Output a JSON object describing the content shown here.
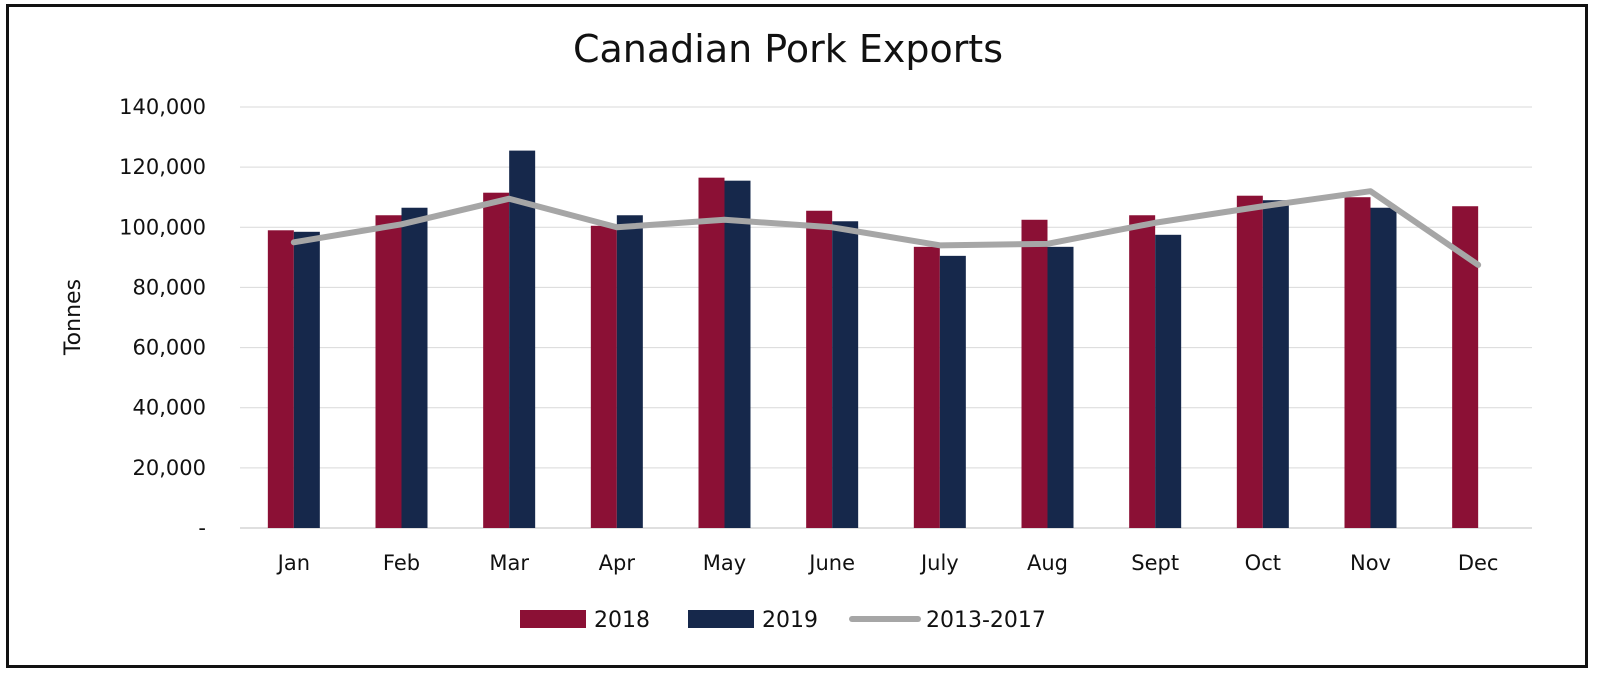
{
  "chart_data": {
    "type": "bar",
    "title": "Canadian Pork Exports",
    "ylabel": "Tonnes",
    "xlabel": "",
    "categories": [
      "Jan",
      "Feb",
      "Mar",
      "Apr",
      "May",
      "June",
      "July",
      "Aug",
      "Sept",
      "Oct",
      "Nov",
      "Dec"
    ],
    "ylim": [
      0,
      140000
    ],
    "yticks": [
      0,
      20000,
      40000,
      60000,
      80000,
      100000,
      120000,
      140000
    ],
    "ytick_labels": [
      "-",
      "20,000",
      "40,000",
      "60,000",
      "80,000",
      "100,000",
      "120,000",
      "140,000"
    ],
    "grid": true,
    "legend_position": "bottom",
    "series": [
      {
        "name": "2018",
        "kind": "bar",
        "color": "#8B1035",
        "values": [
          99000,
          104000,
          111500,
          100500,
          116500,
          105500,
          93500,
          102500,
          104000,
          110500,
          110000,
          107000
        ]
      },
      {
        "name": "2019",
        "kind": "bar",
        "color": "#16284B",
        "values": [
          98500,
          106500,
          125500,
          104000,
          115500,
          102000,
          90500,
          93500,
          97500,
          109000,
          106500,
          null
        ]
      },
      {
        "name": "2013-2017",
        "kind": "line",
        "color": "#A6A6A6",
        "values": [
          95000,
          101000,
          109500,
          100000,
          102500,
          100000,
          94000,
          94500,
          101500,
          107000,
          112000,
          87500
        ]
      }
    ]
  }
}
